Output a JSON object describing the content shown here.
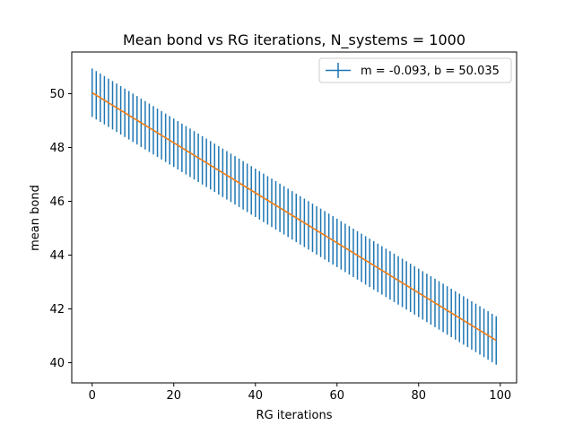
{
  "chart_data": {
    "type": "line",
    "title": "Mean bond vs RG iterations, N_systems = 1000",
    "xlabel": "RG iterations",
    "ylabel": "mean bond",
    "xlim": [
      -5,
      104
    ],
    "ylim": [
      39.25,
      51.55
    ],
    "xticks": [
      0,
      20,
      40,
      60,
      80,
      100
    ],
    "yticks": [
      40,
      42,
      44,
      46,
      48,
      50
    ],
    "xtick_labels": [
      "0",
      "20",
      "40",
      "60",
      "80",
      "100"
    ],
    "ytick_labels": [
      "40",
      "42",
      "44",
      "46",
      "48",
      "50"
    ],
    "grid": false,
    "legend_position": "top-right",
    "series": [
      {
        "name": "m = -0.093, b = 50.035",
        "kind": "errorbar",
        "color": "#1f77b4",
        "x_start": 0,
        "x_end": 99,
        "x_step": 1,
        "slope": -0.093,
        "intercept": 50.035,
        "yerr": 0.9
      },
      {
        "kind": "fit-line",
        "color": "#ff7f0e",
        "slope": -0.093,
        "intercept": 50.035,
        "x_range": [
          0,
          99
        ]
      }
    ]
  }
}
